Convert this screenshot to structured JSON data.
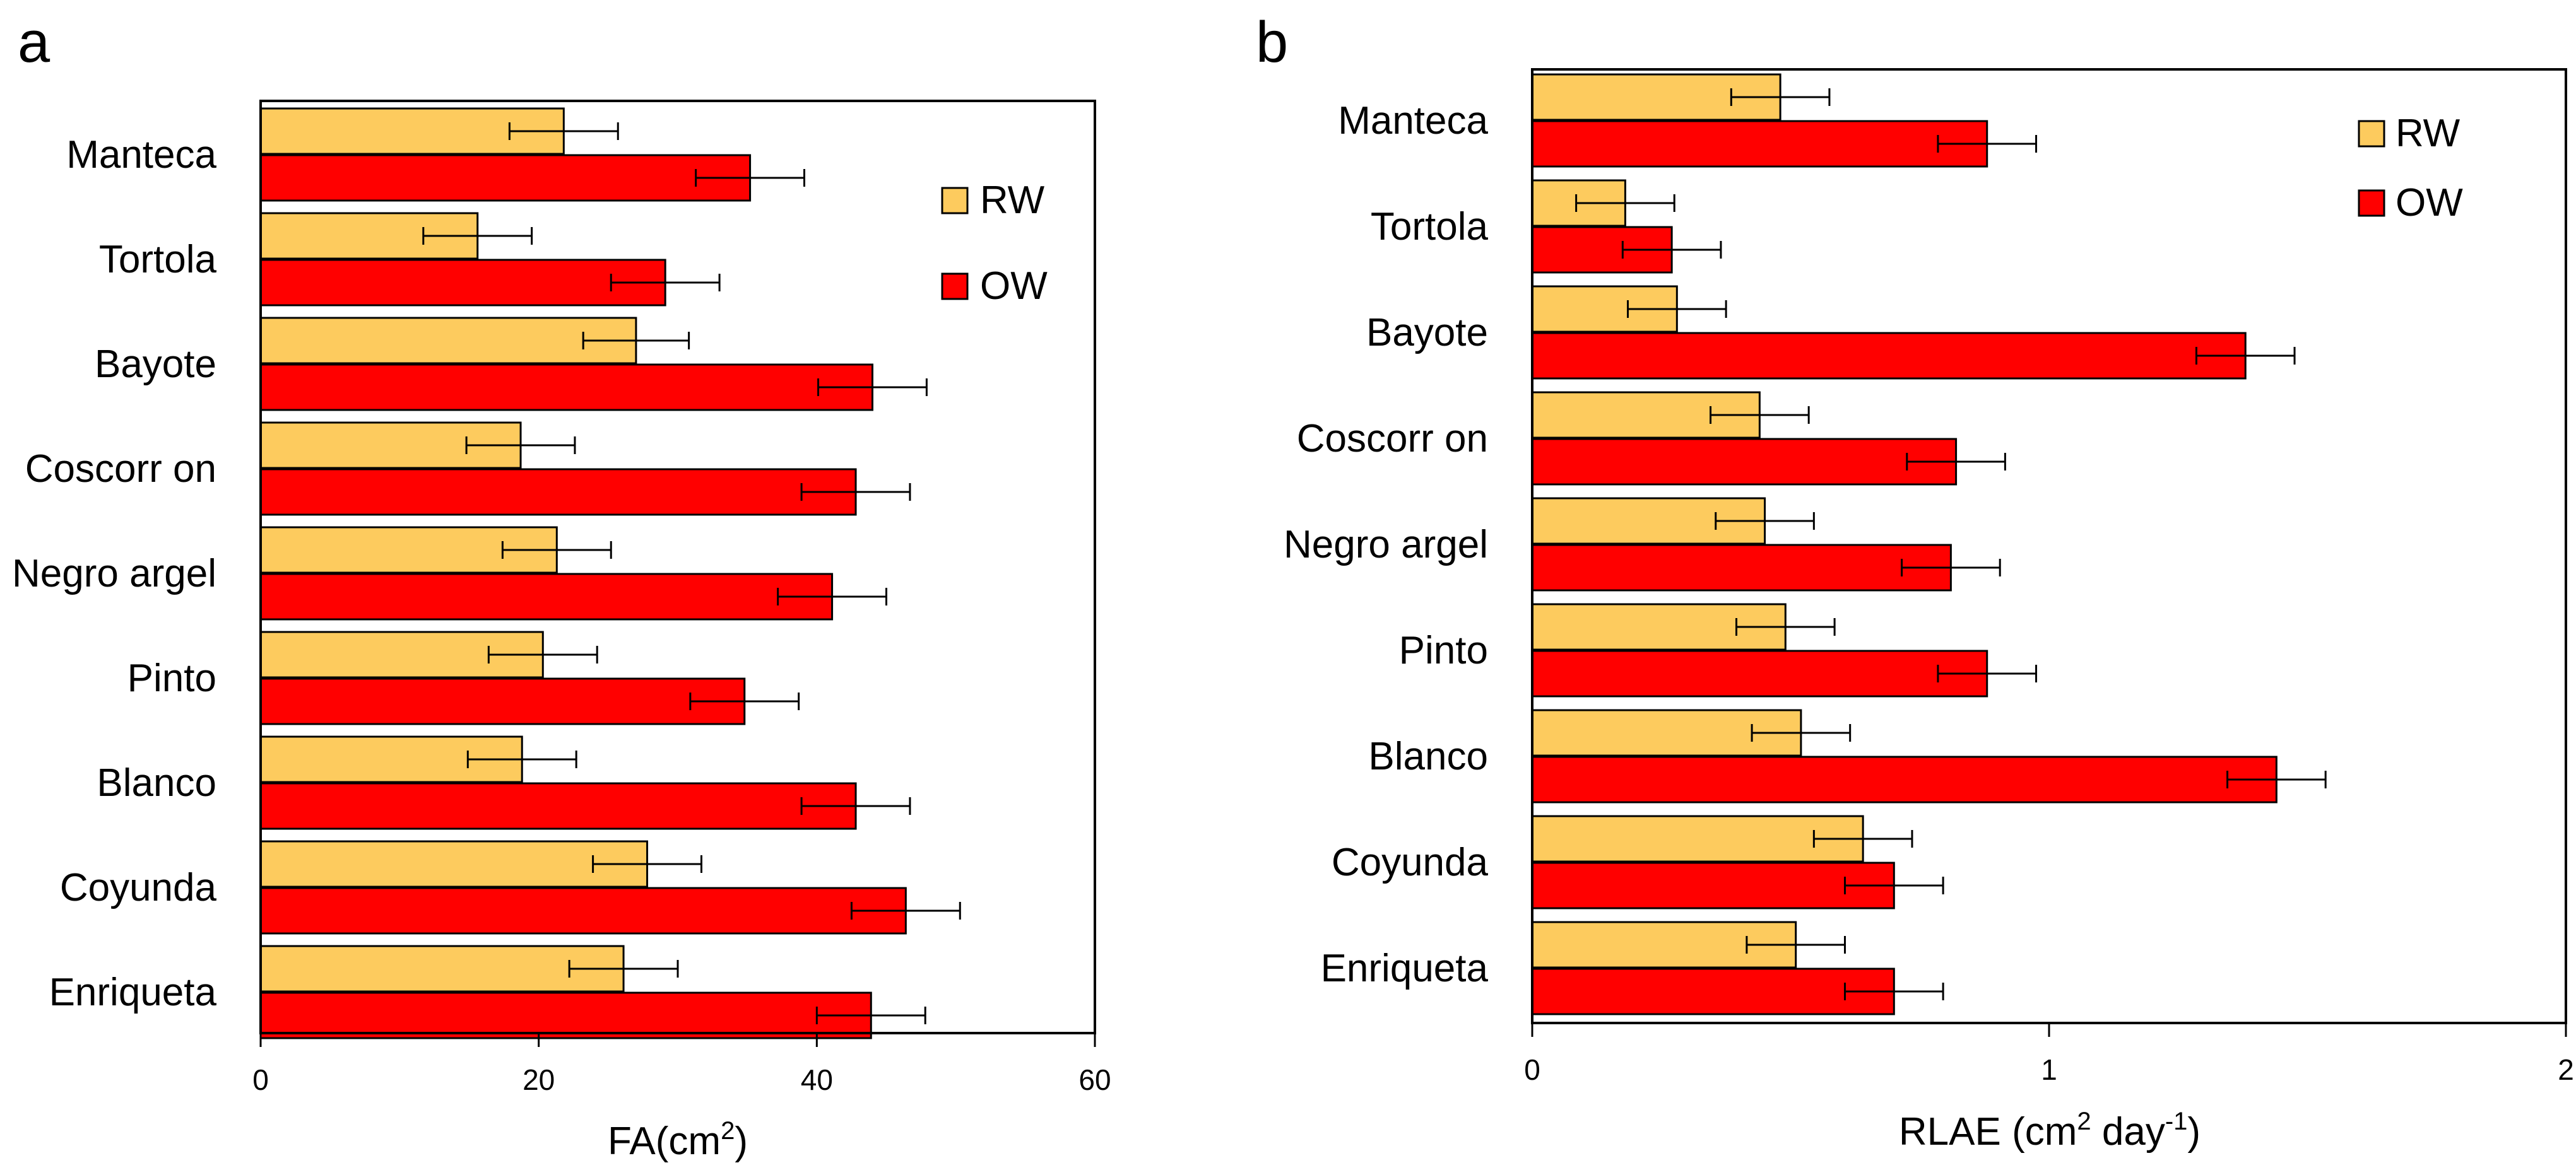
{
  "chart_data": [
    {
      "type": "bar",
      "orientation": "horizontal",
      "panel_label": "a",
      "categories": [
        "Manteca",
        "Tortola",
        "Bayote",
        "Coscorr on",
        "Negro argel",
        "Pinto",
        "Blanco",
        "Coyunda",
        "Enriqueta"
      ],
      "series": [
        {
          "name": "RW",
          "color": "#FDCB5E",
          "values": [
            21.8,
            15.6,
            27.0,
            18.7,
            21.3,
            20.3,
            18.8,
            27.8,
            26.1
          ],
          "errors": [
            3.9,
            3.9,
            3.8,
            3.9,
            3.9,
            3.9,
            3.9,
            3.9,
            3.9
          ]
        },
        {
          "name": "OW",
          "color": "#FF0000",
          "values": [
            35.2,
            29.1,
            44.0,
            42.8,
            41.1,
            34.8,
            42.8,
            46.4,
            43.9
          ],
          "errors": [
            3.9,
            3.9,
            3.9,
            3.9,
            3.9,
            3.9,
            3.9,
            3.9,
            3.9
          ]
        }
      ],
      "xlim": [
        0,
        60
      ],
      "xticks": [
        "0",
        "20",
        "40",
        "60"
      ],
      "xlabel": "FA(cm",
      "xlabel_sup": "2",
      "xlabel_end": ")",
      "legend_position": "top-right"
    },
    {
      "type": "bar",
      "orientation": "horizontal",
      "panel_label": "b",
      "categories": [
        "Manteca",
        "Tortola",
        "Bayote",
        "Coscorr on",
        "Negro argel",
        "Pinto",
        "Blanco",
        "Coyunda",
        "Enriqueta"
      ],
      "series": [
        {
          "name": "RW",
          "color": "#FDCB5E",
          "values": [
            0.48,
            0.18,
            0.28,
            0.44,
            0.45,
            0.49,
            0.52,
            0.64,
            0.51
          ],
          "errors": [
            0.095,
            0.095,
            0.095,
            0.095,
            0.095,
            0.095,
            0.095,
            0.095,
            0.095
          ]
        },
        {
          "name": "OW",
          "color": "#FF0000",
          "values": [
            0.88,
            0.27,
            1.38,
            0.82,
            0.81,
            0.88,
            1.44,
            0.7,
            0.7
          ],
          "errors": [
            0.095,
            0.095,
            0.095,
            0.095,
            0.095,
            0.095,
            0.095,
            0.095,
            0.095
          ]
        }
      ],
      "xlim": [
        0,
        2
      ],
      "xticks": [
        "0",
        "1",
        "2"
      ],
      "xlabel": "RLAE (cm",
      "xlabel_sup": "2",
      "xlabel_mid": " day",
      "xlabel_sup2": "-1",
      "xlabel_end": ")",
      "legend_position": "top-right"
    }
  ]
}
